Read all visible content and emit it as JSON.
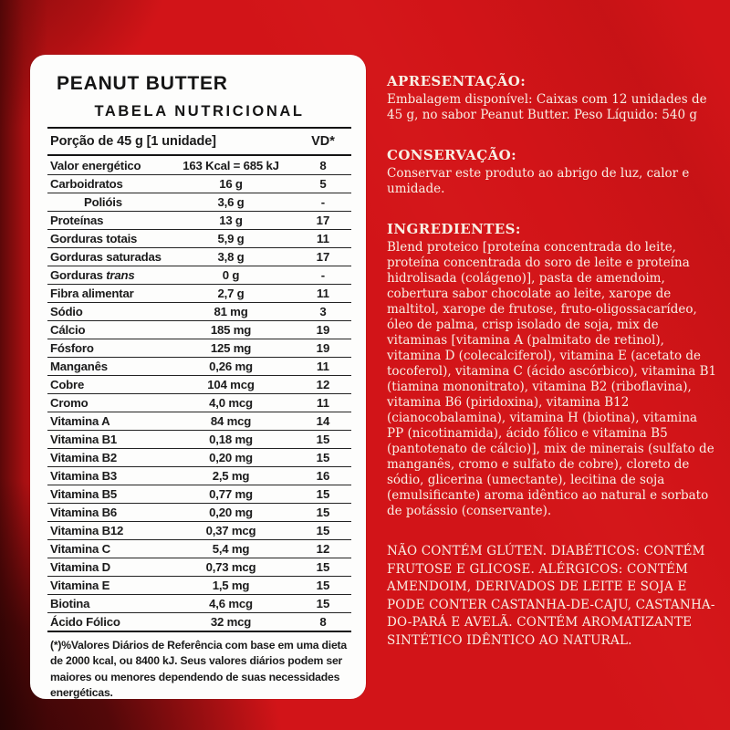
{
  "colors": {
    "background_red": "#d21418",
    "panel_white": "#fdfdfc",
    "panel_text": "#1b1b1b",
    "info_text": "#f8efe4",
    "dark_maroon_edge": "#2a0404"
  },
  "panel": {
    "product_name": "PEANUT BUTTER",
    "table_title": "TABELA NUTRICIONAL",
    "serving_header": "Porção de 45 g  [1 unidade]",
    "vd_header": "VD*",
    "rows": [
      {
        "name": "Valor energético",
        "amount": "163 Kcal = 685 kJ",
        "vd": "8"
      },
      {
        "name": "Carboidratos",
        "amount": "16 g",
        "vd": "5"
      },
      {
        "name": "Polióis",
        "amount": "3,6 g",
        "vd": "-",
        "indent": true
      },
      {
        "name": "Proteínas",
        "amount": "13 g",
        "vd": "17"
      },
      {
        "name": "Gorduras totais",
        "amount": "5,9 g",
        "vd": "11"
      },
      {
        "name": "Gorduras saturadas",
        "amount": "3,8 g",
        "vd": "17"
      },
      {
        "name": "Gorduras trans",
        "amount": "0 g",
        "vd": "-",
        "italic_last": true
      },
      {
        "name": "Fibra alimentar",
        "amount": "2,7 g",
        "vd": "11"
      },
      {
        "name": "Sódio",
        "amount": "81 mg",
        "vd": "3"
      },
      {
        "name": "Cálcio",
        "amount": "185 mg",
        "vd": "19"
      },
      {
        "name": "Fósforo",
        "amount": "125 mg",
        "vd": "19"
      },
      {
        "name": "Manganês",
        "amount": "0,26 mg",
        "vd": "11"
      },
      {
        "name": "Cobre",
        "amount": "104 mcg",
        "vd": "12"
      },
      {
        "name": "Cromo",
        "amount": "4,0 mcg",
        "vd": "11"
      },
      {
        "name": "Vitamina A",
        "amount": "84 mcg",
        "vd": "14"
      },
      {
        "name": "Vitamina B1",
        "amount": "0,18 mg",
        "vd": "15"
      },
      {
        "name": "Vitamina B2",
        "amount": "0,20 mg",
        "vd": "15"
      },
      {
        "name": "Vitamina B3",
        "amount": "2,5 mg",
        "vd": "16"
      },
      {
        "name": "Vitamina B5",
        "amount": "0,77 mg",
        "vd": "15"
      },
      {
        "name": "Vitamina B6",
        "amount": "0,20 mg",
        "vd": "15"
      },
      {
        "name": "Vitamina B12",
        "amount": "0,37 mcg",
        "vd": "15"
      },
      {
        "name": "Vitamina C",
        "amount": "5,4 mg",
        "vd": "12"
      },
      {
        "name": "Vitamina D",
        "amount": "0,73 mcg",
        "vd": "15"
      },
      {
        "name": "Vitamina E",
        "amount": "1,5 mg",
        "vd": "15"
      },
      {
        "name": "Biotina",
        "amount": "4,6 mcg",
        "vd": "15"
      },
      {
        "name": "Ácido Fólico",
        "amount": "32 mcg",
        "vd": "8"
      }
    ],
    "footnote": "(*)%Valores Diários de Referência com base em uma dieta de 2000 kcal, ou 8400 kJ. Seus valores diários podem ser maiores ou menores dependendo de suas necessidades energéticas."
  },
  "info": {
    "sections": [
      {
        "heading": "APRESENTAÇÃO:",
        "body": "Embalagem disponível: Caixas com 12 unidades de 45 g, no sabor Peanut Butter. Peso Líquido: 540 g"
      },
      {
        "heading": "CONSERVAÇÃO:",
        "body": "Conservar este produto ao abrigo de luz, calor e umidade."
      },
      {
        "heading": "INGREDIENTES:",
        "body": "Blend proteico [proteína concentrada do leite, proteína concentrada do soro de leite e proteína hidrolisada (colágeno)], pasta de amendoim, cobertura sabor chocolate ao leite, xarope de maltitol, xarope de frutose, fruto-oligossacarídeo, óleo de palma, crisp isolado de soja, mix de vitaminas [vitamina A (palmitato de retinol), vitamina D (colecalciferol), vitamina E (acetato de tocoferol), vitamina C (ácido ascórbico), vitamina B1 (tiamina mononitrato), vitamina B2 (riboflavina), vitamina B6 (piridoxina), vitamina B12 (cianocobalamina), vitamina H (biotina), vitamina PP (nicotinamida), ácido fólico e vitamina B5 (pantotenato de cálcio)],  mix de minerais (sulfato de manganês, cromo e sulfato de cobre), cloreto de sódio, glicerina (umectante), lecitina de soja (emulsificante) aroma idêntico ao natural e sorbato de potássio (conservante)."
      },
      {
        "heading": "",
        "caps": true,
        "body": "NÃO CONTÉM GLÚTEN. DIABÉTICOS: CONTÉM FRUTOSE E GLICOSE. ALÉRGICOS: CONTÉM AMENDOIM, DERIVADOS DE LEITE E SOJA E PODE CONTER CASTANHA-DE-CAJU, CASTANHA-DO-PARÁ E AVELÃ. CONTÉM AROMATIZANTE SINTÉTICO IDÊNTICO AO NATURAL."
      }
    ]
  }
}
